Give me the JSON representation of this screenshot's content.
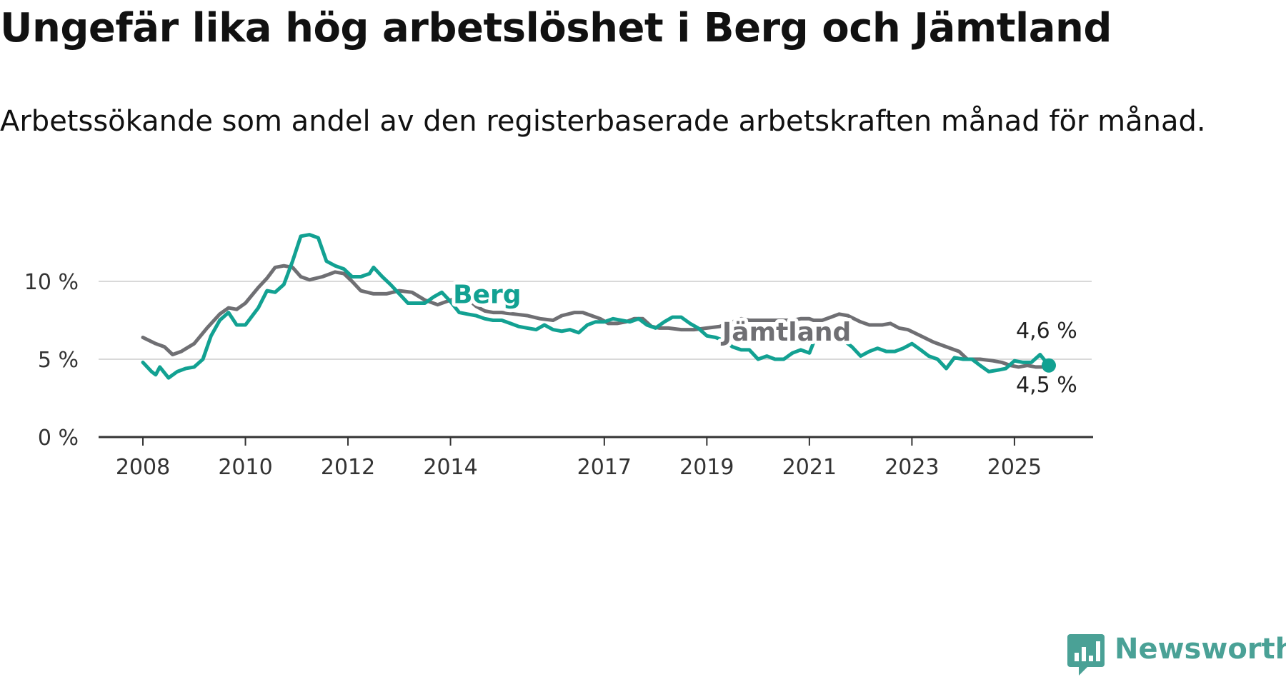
{
  "header": {
    "title": "Ungefär lika hög arbetslöshet i Berg och Jämtland",
    "subtitle": "Arbetssökande som andel av den registerbaserade arbetskraften månad för månad."
  },
  "brand": {
    "name": "Newsworthy",
    "icon": "newsworthy-logo-icon",
    "color": "#4aa196"
  },
  "colors": {
    "berg": "#12a192",
    "jamtland": "#6f6f73",
    "grid": "#d9d9d9",
    "axis": "#333333"
  },
  "chart_data": {
    "type": "line",
    "title": "Ungefär lika hög arbetslöshet i Berg och Jämtland",
    "subtitle": "Arbetssökande som andel av den registerbaserade arbetskraften månad för månad.",
    "xlabel": "",
    "ylabel": "",
    "x_range": [
      2008,
      2025.67
    ],
    "ylim": [
      0,
      13
    ],
    "x_ticks": [
      2008,
      2010,
      2012,
      2014,
      2017,
      2019,
      2021,
      2023,
      2025
    ],
    "x_tick_labels": [
      "2008",
      "2010",
      "2012",
      "2014",
      "2017",
      "2019",
      "2021",
      "2023",
      "2025"
    ],
    "y_ticks": [
      0,
      5,
      10
    ],
    "y_tick_labels": [
      "0 %",
      "5 %",
      "10 %"
    ],
    "grid": true,
    "legend": "inline labels on lines",
    "series": [
      {
        "name": "Jämtland",
        "color": "#6f6f73",
        "end_label": "4,5 %",
        "points": [
          [
            2008.0,
            6.4
          ],
          [
            2008.25,
            6.0
          ],
          [
            2008.42,
            5.8
          ],
          [
            2008.58,
            5.3
          ],
          [
            2008.75,
            5.5
          ],
          [
            2009.0,
            6.0
          ],
          [
            2009.25,
            7.0
          ],
          [
            2009.5,
            7.9
          ],
          [
            2009.67,
            8.3
          ],
          [
            2009.83,
            8.2
          ],
          [
            2010.0,
            8.6
          ],
          [
            2010.25,
            9.6
          ],
          [
            2010.42,
            10.2
          ],
          [
            2010.58,
            10.9
          ],
          [
            2010.75,
            11.0
          ],
          [
            2010.92,
            10.9
          ],
          [
            2011.08,
            10.3
          ],
          [
            2011.25,
            10.1
          ],
          [
            2011.5,
            10.3
          ],
          [
            2011.75,
            10.6
          ],
          [
            2011.92,
            10.5
          ],
          [
            2012.08,
            10.0
          ],
          [
            2012.25,
            9.4
          ],
          [
            2012.5,
            9.2
          ],
          [
            2012.75,
            9.2
          ],
          [
            2013.0,
            9.4
          ],
          [
            2013.25,
            9.3
          ],
          [
            2013.5,
            8.8
          ],
          [
            2013.75,
            8.5
          ],
          [
            2014.0,
            8.8
          ],
          [
            2014.17,
            9.0
          ],
          [
            2014.33,
            8.9
          ],
          [
            2014.5,
            8.4
          ],
          [
            2014.67,
            8.1
          ],
          [
            2014.83,
            8.0
          ],
          [
            2015.0,
            8.0
          ],
          [
            2015.25,
            7.9
          ],
          [
            2015.5,
            7.8
          ],
          [
            2015.75,
            7.6
          ],
          [
            2016.0,
            7.5
          ],
          [
            2016.17,
            7.8
          ],
          [
            2016.42,
            8.0
          ],
          [
            2016.58,
            8.0
          ],
          [
            2016.75,
            7.8
          ],
          [
            2016.92,
            7.6
          ],
          [
            2017.08,
            7.3
          ],
          [
            2017.25,
            7.3
          ],
          [
            2017.42,
            7.4
          ],
          [
            2017.58,
            7.6
          ],
          [
            2017.75,
            7.6
          ],
          [
            2017.92,
            7.1
          ],
          [
            2018.08,
            7.0
          ],
          [
            2018.25,
            7.0
          ],
          [
            2018.5,
            6.9
          ],
          [
            2018.75,
            6.9
          ],
          [
            2019.0,
            7.0
          ],
          [
            2019.25,
            7.1
          ],
          [
            2019.5,
            7.4
          ],
          [
            2019.67,
            7.6
          ],
          [
            2019.83,
            7.5
          ],
          [
            2020.0,
            7.5
          ],
          [
            2020.25,
            7.5
          ],
          [
            2020.42,
            7.5
          ],
          [
            2020.67,
            7.5
          ],
          [
            2020.83,
            7.6
          ],
          [
            2021.0,
            7.6
          ],
          [
            2021.08,
            7.5
          ],
          [
            2021.25,
            7.5
          ],
          [
            2021.42,
            7.7
          ],
          [
            2021.58,
            7.9
          ],
          [
            2021.75,
            7.8
          ],
          [
            2022.0,
            7.4
          ],
          [
            2022.17,
            7.2
          ],
          [
            2022.42,
            7.2
          ],
          [
            2022.58,
            7.3
          ],
          [
            2022.75,
            7.0
          ],
          [
            2022.92,
            6.9
          ],
          [
            2023.17,
            6.5
          ],
          [
            2023.42,
            6.1
          ],
          [
            2023.67,
            5.8
          ],
          [
            2023.92,
            5.5
          ],
          [
            2024.08,
            5.0
          ],
          [
            2024.33,
            5.0
          ],
          [
            2024.58,
            4.9
          ],
          [
            2024.75,
            4.8
          ],
          [
            2024.92,
            4.6
          ],
          [
            2025.08,
            4.5
          ],
          [
            2025.25,
            4.6
          ],
          [
            2025.42,
            4.5
          ],
          [
            2025.58,
            4.5
          ]
        ]
      },
      {
        "name": "Berg",
        "color": "#12a192",
        "end_label": "4,6 %",
        "points": [
          [
            2008.0,
            4.8
          ],
          [
            2008.17,
            4.2
          ],
          [
            2008.25,
            4.0
          ],
          [
            2008.33,
            4.5
          ],
          [
            2008.5,
            3.8
          ],
          [
            2008.67,
            4.2
          ],
          [
            2008.83,
            4.4
          ],
          [
            2009.0,
            4.5
          ],
          [
            2009.17,
            5.0
          ],
          [
            2009.33,
            6.5
          ],
          [
            2009.5,
            7.5
          ],
          [
            2009.67,
            8.0
          ],
          [
            2009.83,
            7.2
          ],
          [
            2010.0,
            7.2
          ],
          [
            2010.25,
            8.3
          ],
          [
            2010.42,
            9.4
          ],
          [
            2010.58,
            9.3
          ],
          [
            2010.75,
            9.8
          ],
          [
            2010.92,
            11.3
          ],
          [
            2011.08,
            12.9
          ],
          [
            2011.25,
            13.0
          ],
          [
            2011.42,
            12.8
          ],
          [
            2011.58,
            11.3
          ],
          [
            2011.75,
            11.0
          ],
          [
            2011.92,
            10.8
          ],
          [
            2012.08,
            10.3
          ],
          [
            2012.25,
            10.3
          ],
          [
            2012.42,
            10.5
          ],
          [
            2012.5,
            10.9
          ],
          [
            2012.67,
            10.3
          ],
          [
            2012.83,
            9.8
          ],
          [
            2013.0,
            9.2
          ],
          [
            2013.17,
            8.6
          ],
          [
            2013.33,
            8.6
          ],
          [
            2013.5,
            8.6
          ],
          [
            2013.67,
            9.0
          ],
          [
            2013.83,
            9.3
          ],
          [
            2014.0,
            8.7
          ],
          [
            2014.17,
            8.0
          ],
          [
            2014.33,
            7.9
          ],
          [
            2014.5,
            7.8
          ],
          [
            2014.67,
            7.6
          ],
          [
            2014.83,
            7.5
          ],
          [
            2015.0,
            7.5
          ],
          [
            2015.17,
            7.3
          ],
          [
            2015.33,
            7.1
          ],
          [
            2015.5,
            7.0
          ],
          [
            2015.67,
            6.9
          ],
          [
            2015.83,
            7.2
          ],
          [
            2016.0,
            6.9
          ],
          [
            2016.17,
            6.8
          ],
          [
            2016.33,
            6.9
          ],
          [
            2016.5,
            6.7
          ],
          [
            2016.67,
            7.2
          ],
          [
            2016.83,
            7.4
          ],
          [
            2017.0,
            7.4
          ],
          [
            2017.17,
            7.6
          ],
          [
            2017.33,
            7.5
          ],
          [
            2017.5,
            7.4
          ],
          [
            2017.67,
            7.6
          ],
          [
            2017.83,
            7.2
          ],
          [
            2018.0,
            7.0
          ],
          [
            2018.17,
            7.4
          ],
          [
            2018.33,
            7.7
          ],
          [
            2018.5,
            7.7
          ],
          [
            2018.67,
            7.3
          ],
          [
            2018.83,
            7.0
          ],
          [
            2019.0,
            6.5
          ],
          [
            2019.17,
            6.4
          ],
          [
            2019.33,
            6.2
          ],
          [
            2019.5,
            5.8
          ],
          [
            2019.67,
            5.6
          ],
          [
            2019.83,
            5.6
          ],
          [
            2020.0,
            5.0
          ],
          [
            2020.17,
            5.2
          ],
          [
            2020.33,
            5.0
          ],
          [
            2020.5,
            5.0
          ],
          [
            2020.67,
            5.4
          ],
          [
            2020.83,
            5.6
          ],
          [
            2021.0,
            5.4
          ],
          [
            2021.17,
            6.8
          ],
          [
            2021.33,
            7.0
          ],
          [
            2021.5,
            6.8
          ],
          [
            2021.67,
            6.2
          ],
          [
            2021.83,
            5.8
          ],
          [
            2022.0,
            5.2
          ],
          [
            2022.17,
            5.5
          ],
          [
            2022.33,
            5.7
          ],
          [
            2022.5,
            5.5
          ],
          [
            2022.67,
            5.5
          ],
          [
            2022.83,
            5.7
          ],
          [
            2023.0,
            6.0
          ],
          [
            2023.17,
            5.6
          ],
          [
            2023.33,
            5.2
          ],
          [
            2023.5,
            5.0
          ],
          [
            2023.67,
            4.4
          ],
          [
            2023.83,
            5.1
          ],
          [
            2024.0,
            5.0
          ],
          [
            2024.17,
            5.0
          ],
          [
            2024.33,
            4.6
          ],
          [
            2024.5,
            4.2
          ],
          [
            2024.67,
            4.3
          ],
          [
            2024.83,
            4.4
          ],
          [
            2025.0,
            4.9
          ],
          [
            2025.17,
            4.8
          ],
          [
            2025.33,
            4.8
          ],
          [
            2025.5,
            5.3
          ],
          [
            2025.67,
            4.6
          ]
        ]
      }
    ],
    "inline_labels": [
      {
        "series": "Berg",
        "text": "Berg",
        "x": 2014.05,
        "y": 8.6
      },
      {
        "series": "Jämtland",
        "text": "Jämtland",
        "x": 2019.3,
        "y": 6.2
      }
    ]
  }
}
